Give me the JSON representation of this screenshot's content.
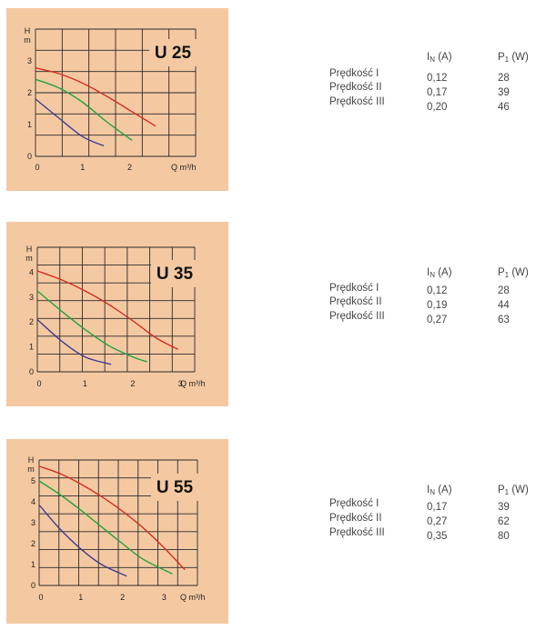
{
  "chart_data": [
    {
      "type": "line",
      "title": "U 25",
      "xlabel": "Q m³/h",
      "ylabel": "H m",
      "xlim": [
        0,
        3.4
      ],
      "ylim": [
        0,
        4
      ],
      "xticks": [
        "0",
        "1",
        "2"
      ],
      "yticks": [
        "0",
        "1",
        "2",
        "3"
      ],
      "series": [
        {
          "color": "#d62d20",
          "points": [
            [
              0,
              2.78
            ],
            [
              0.5,
              2.6
            ],
            [
              1,
              2.3
            ],
            [
              1.5,
              1.9
            ],
            [
              2,
              1.45
            ],
            [
              2.55,
              0.95
            ]
          ]
        },
        {
          "color": "#1fa33a",
          "points": [
            [
              0,
              2.42
            ],
            [
              0.5,
              2.15
            ],
            [
              1,
              1.7
            ],
            [
              1.5,
              1.1
            ],
            [
              2.05,
              0.5
            ]
          ]
        },
        {
          "color": "#3d3c96",
          "points": [
            [
              0,
              1.8
            ],
            [
              0.5,
              1.2
            ],
            [
              1,
              0.62
            ],
            [
              1.45,
              0.33
            ]
          ]
        }
      ]
    },
    {
      "type": "line",
      "title": "U 35",
      "xlabel": "Q m³/h",
      "ylabel": "H m",
      "xlim": [
        0,
        3.3
      ],
      "ylim": [
        0,
        5
      ],
      "xticks": [
        "0",
        "1",
        "2",
        "3"
      ],
      "yticks": [
        "0",
        "1",
        "2",
        "3",
        "4"
      ],
      "series": [
        {
          "color": "#d62d20",
          "points": [
            [
              0,
              4.05
            ],
            [
              0.5,
              3.7
            ],
            [
              1,
              3.25
            ],
            [
              1.5,
              2.7
            ],
            [
              2,
              2.05
            ],
            [
              2.5,
              1.35
            ],
            [
              2.95,
              0.9
            ]
          ]
        },
        {
          "color": "#1fa33a",
          "points": [
            [
              0,
              3.25
            ],
            [
              0.5,
              2.45
            ],
            [
              1,
              1.7
            ],
            [
              1.5,
              1.05
            ],
            [
              2,
              0.6
            ],
            [
              2.3,
              0.4
            ]
          ]
        },
        {
          "color": "#3d3c96",
          "points": [
            [
              0,
              2.1
            ],
            [
              0.5,
              1.25
            ],
            [
              1,
              0.6
            ],
            [
              1.55,
              0.3
            ]
          ]
        }
      ]
    },
    {
      "type": "line",
      "title": "U 55",
      "xlabel": "Q m³/h",
      "ylabel": "H m",
      "xlim": [
        0,
        3.8
      ],
      "ylim": [
        0,
        6
      ],
      "xticks": [
        "0",
        "1",
        "2",
        "3"
      ],
      "yticks": [
        "0",
        "1",
        "2",
        "3",
        "4",
        "5"
      ],
      "series": [
        {
          "color": "#d62d20",
          "points": [
            [
              0,
              5.7
            ],
            [
              0.5,
              5.35
            ],
            [
              1,
              4.85
            ],
            [
              1.5,
              4.25
            ],
            [
              2,
              3.55
            ],
            [
              2.5,
              2.75
            ],
            [
              3,
              1.8
            ],
            [
              3.5,
              0.75
            ]
          ]
        },
        {
          "color": "#1fa33a",
          "points": [
            [
              0,
              5.0
            ],
            [
              0.5,
              4.35
            ],
            [
              1,
              3.6
            ],
            [
              1.5,
              2.8
            ],
            [
              2,
              2.0
            ],
            [
              2.5,
              1.25
            ],
            [
              3.2,
              0.55
            ]
          ]
        },
        {
          "color": "#3d3c96",
          "points": [
            [
              0,
              3.85
            ],
            [
              0.5,
              2.7
            ],
            [
              1,
              1.75
            ],
            [
              1.5,
              1.0
            ],
            [
              2.1,
              0.45
            ]
          ]
        }
      ]
    }
  ],
  "specs": [
    {
      "header": {
        "current": "I",
        "current_sub": "N",
        "current_unit": "(A)",
        "power": "P",
        "power_sub": "1",
        "power_unit": "(W)"
      },
      "rows": [
        {
          "speed": "Prędkość I",
          "current": "0,12",
          "power": "28"
        },
        {
          "speed": "Prędkość II",
          "current": "0,17",
          "power": "39"
        },
        {
          "speed": "Prędkość III",
          "current": "0,20",
          "power": "46"
        }
      ]
    },
    {
      "header": {
        "current": "I",
        "current_sub": "N",
        "current_unit": "(A)",
        "power": "P",
        "power_sub": "1",
        "power_unit": "(W)"
      },
      "rows": [
        {
          "speed": "Prędkość I",
          "current": "0,12",
          "power": "28"
        },
        {
          "speed": "Prędkość II",
          "current": "0,19",
          "power": "44"
        },
        {
          "speed": "Prędkość III",
          "current": "0,27",
          "power": "63"
        }
      ]
    },
    {
      "header": {
        "current": "I",
        "current_sub": "N",
        "current_unit": "(A)",
        "power": "P",
        "power_sub": "1",
        "power_unit": "(W)"
      },
      "rows": [
        {
          "speed": "Prędkość I",
          "current": "0,17",
          "power": "39"
        },
        {
          "speed": "Prędkość II",
          "current": "0,27",
          "power": "62"
        },
        {
          "speed": "Prędkość III",
          "current": "0,35",
          "power": "80"
        }
      ]
    }
  ]
}
